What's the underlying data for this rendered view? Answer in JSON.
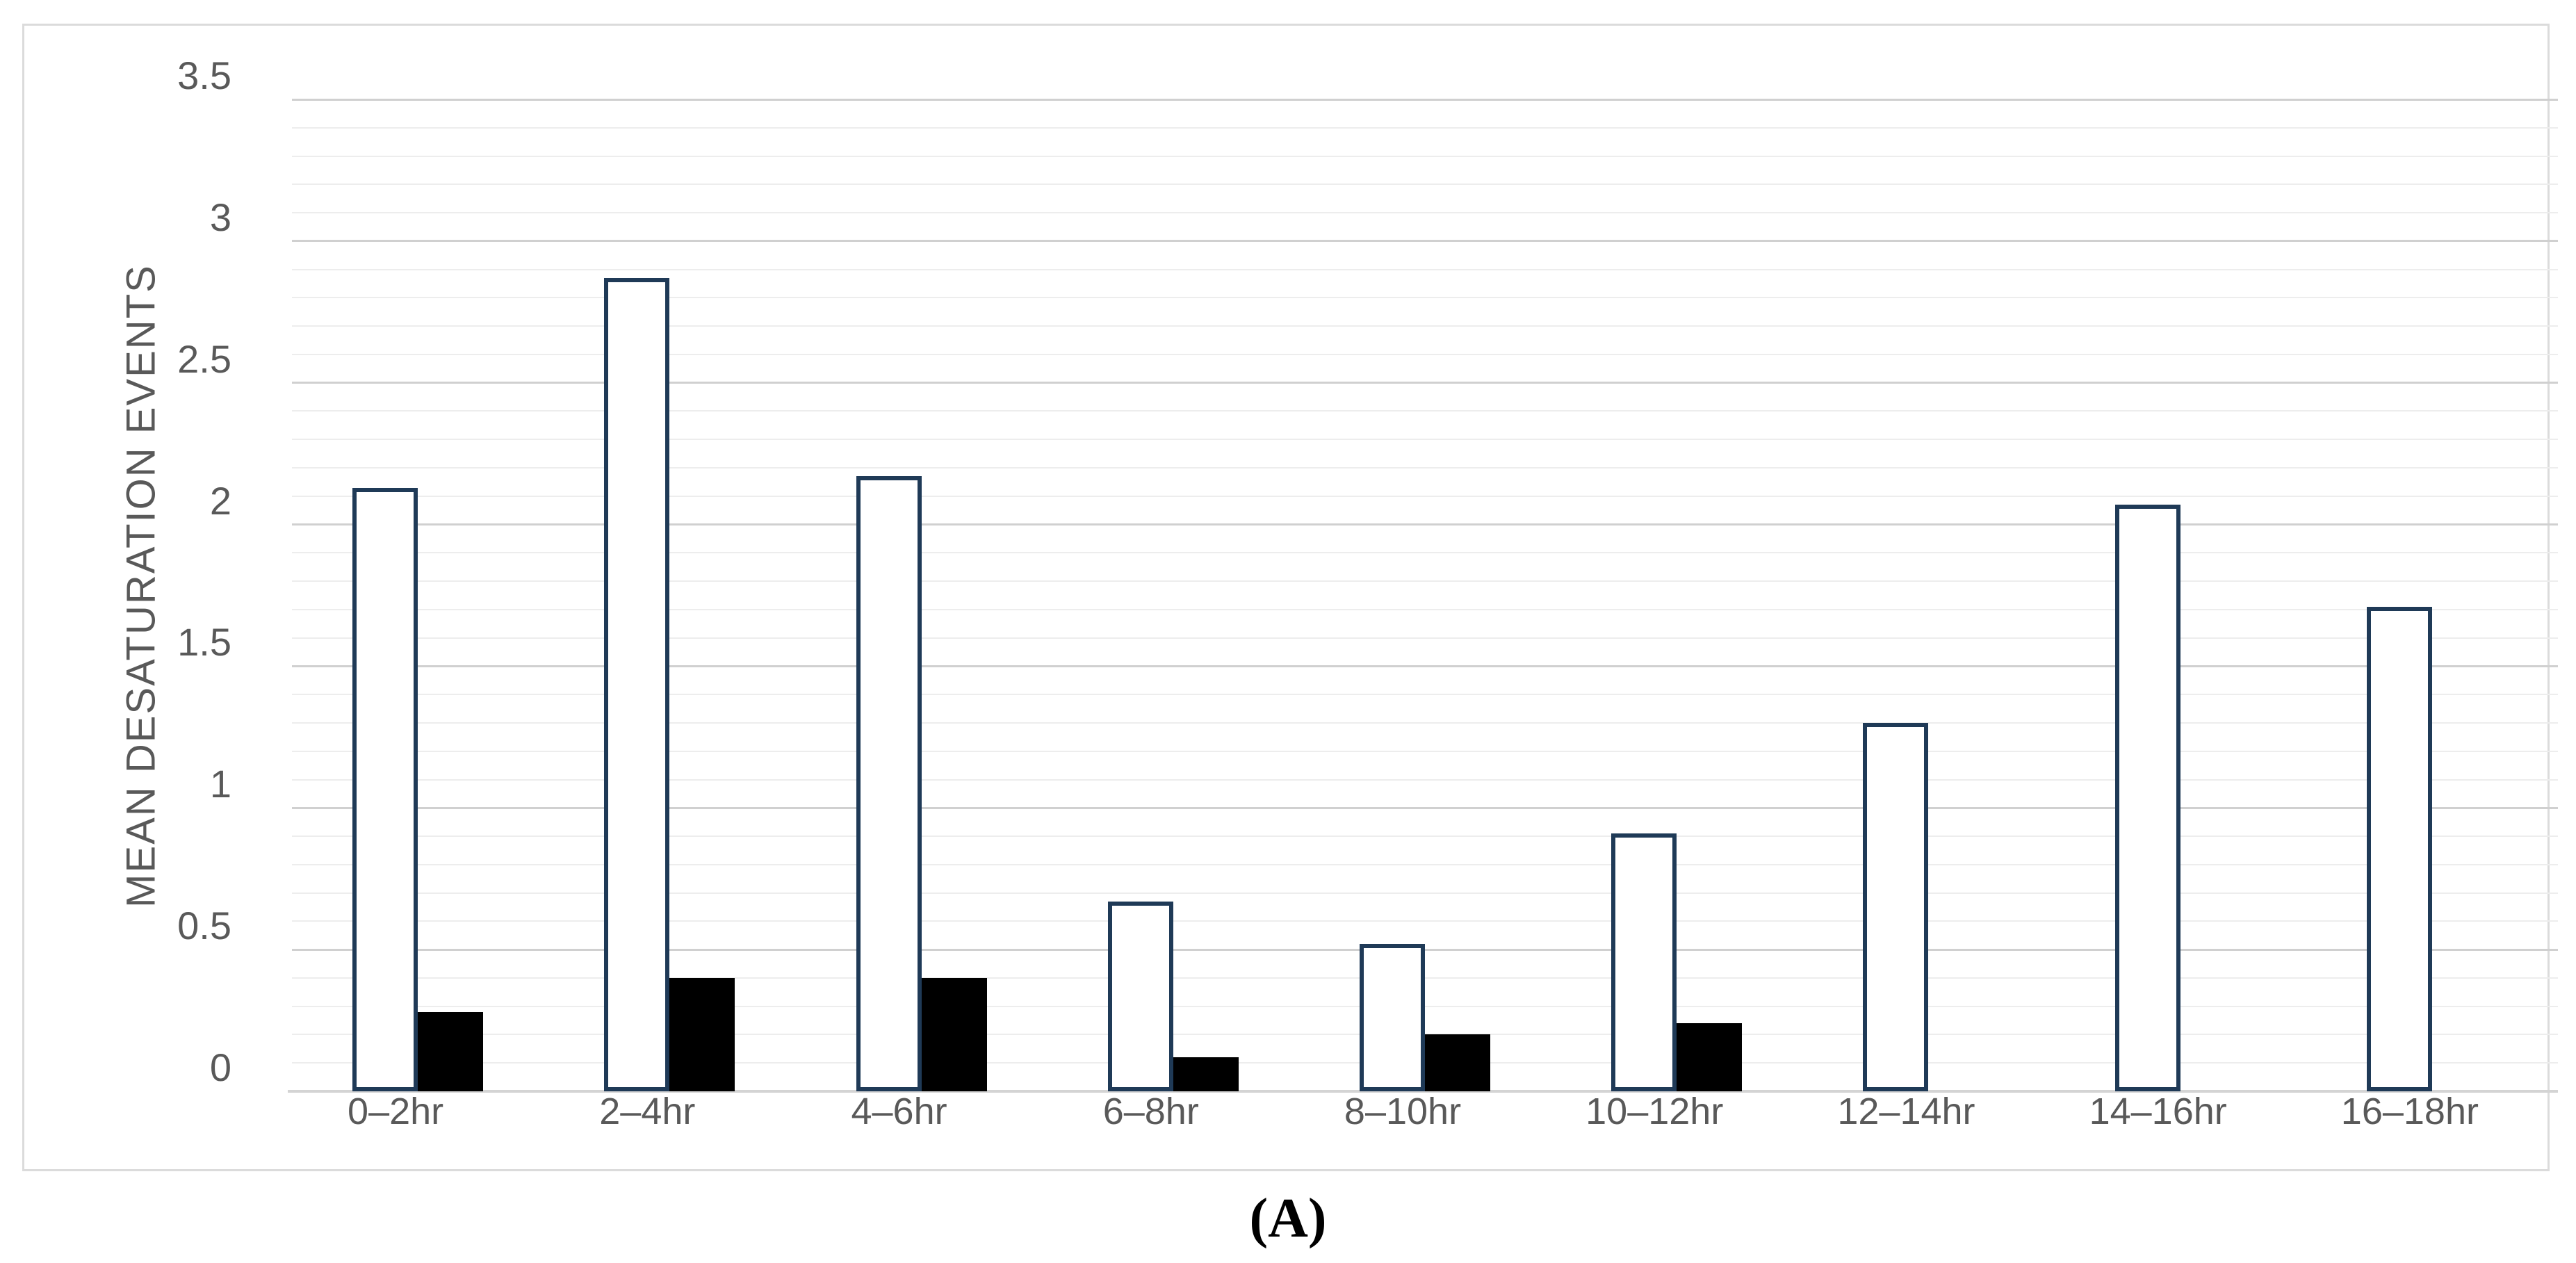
{
  "figure": {
    "caption": "(A)"
  },
  "colors": {
    "open_bar_fill": "#ffffff",
    "open_bar_outline": "#1f3a57",
    "solid_bar_fill": "#000000",
    "major_gridline": "#d0d0d0",
    "minor_gridline": "#ededed",
    "axis_line": "#d4d4d4",
    "frame_border": "#dbdbdb",
    "text": "#595959",
    "caption_text": "#000000"
  },
  "chart_data": {
    "type": "bar",
    "title": "",
    "xlabel": "",
    "ylabel": "MEAN DESATURATION EVENTS",
    "ylim": [
      0,
      3.5
    ],
    "ytick_labels": [
      "3.5",
      "3",
      "2.5",
      "2",
      "1.5",
      "1",
      "0.5",
      "0"
    ],
    "ytick_values": [
      3.5,
      3.0,
      2.5,
      2.0,
      1.5,
      1.0,
      0.5,
      0
    ],
    "ytick_minor_step": 0.1,
    "grid": "horizontal major and minor gridlines, no vertical gridlines",
    "legend": "none",
    "categories": [
      "0–2hr",
      "2–4hr",
      "4–6hr",
      "6–8hr",
      "8–10hr",
      "10–12hr",
      "12–14hr",
      "14–16hr",
      "16–18hr"
    ],
    "series": [
      {
        "name": "white-outlined-bars",
        "style": "white fill with dark navy outline",
        "values": [
          2.13,
          2.87,
          2.17,
          0.67,
          0.52,
          0.91,
          1.3,
          2.07,
          1.71
        ]
      },
      {
        "name": "solid-black-bars",
        "style": "solid black fill",
        "values": [
          0.28,
          0.4,
          0.4,
          0.12,
          0.2,
          0.24,
          0,
          0,
          0
        ]
      }
    ]
  }
}
